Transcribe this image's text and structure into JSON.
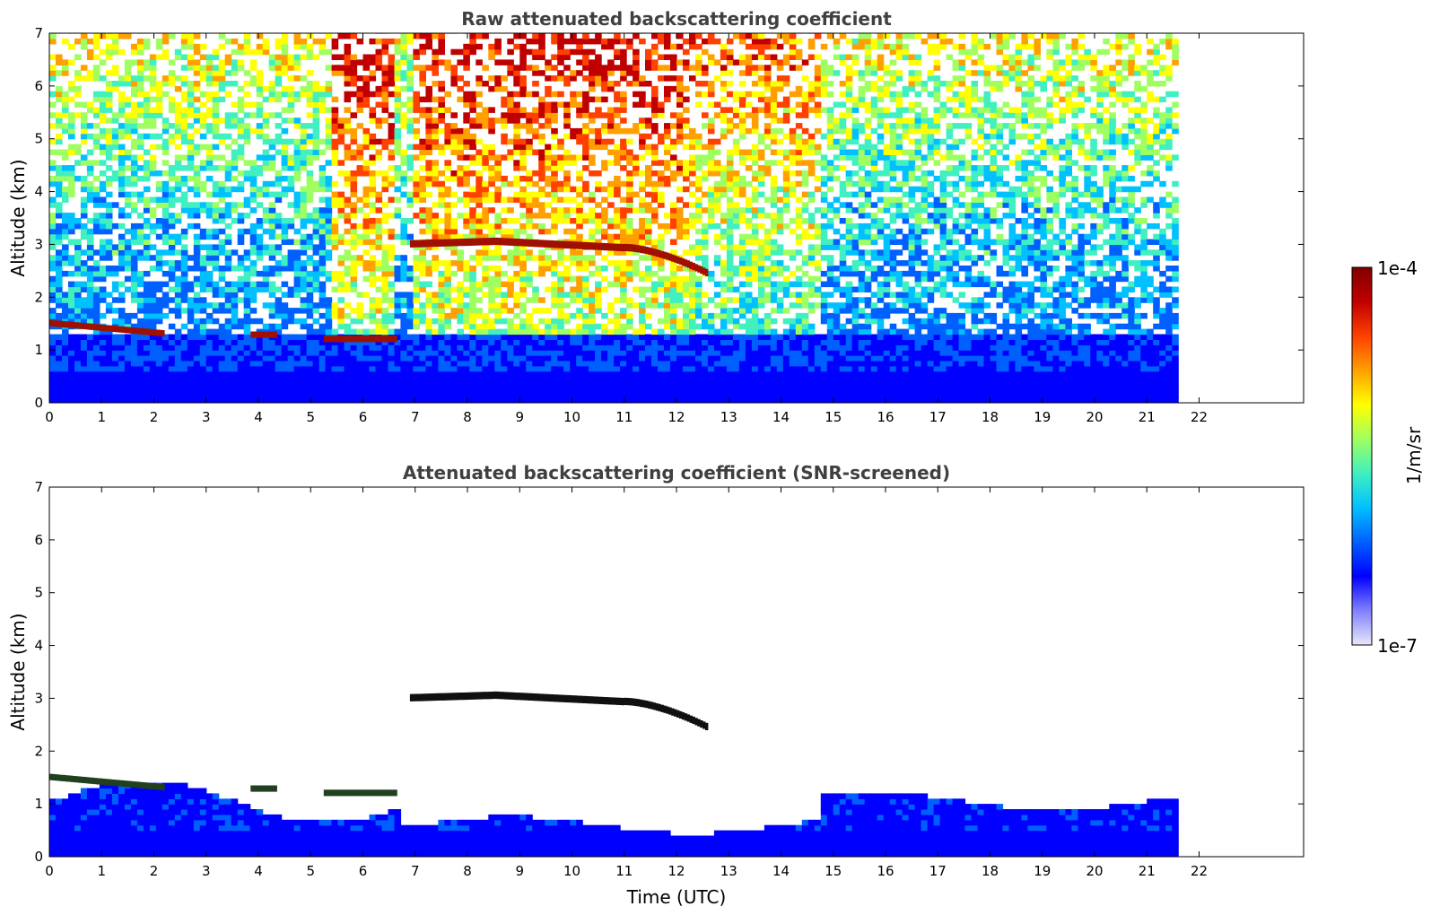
{
  "chart_data": [
    {
      "type": "heatmap",
      "title": "Raw attenuated backscattering coefficient",
      "xlabel": "",
      "ylabel": "Altitude (km)",
      "xlim": [
        0,
        24
      ],
      "ylim": [
        0,
        7
      ],
      "xticks": [
        "0",
        "1",
        "2",
        "3",
        "4",
        "5",
        "6",
        "7",
        "8",
        "9",
        "10",
        "11",
        "12",
        "13",
        "14",
        "15",
        "16",
        "17",
        "18",
        "19",
        "20",
        "21",
        "22"
      ],
      "yticks": [
        "0",
        "1",
        "2",
        "3",
        "4",
        "5",
        "6",
        "7"
      ],
      "data_end_time": 21.6,
      "features": [
        {
          "name": "elevated layer",
          "time": [
            6.9,
            12.6
          ],
          "altitude": [
            2.45,
            3.1
          ]
        },
        {
          "name": "low cloud",
          "time": [
            0,
            2.2
          ],
          "altitude": [
            1.3,
            1.55
          ]
        },
        {
          "name": "low cloud",
          "time": [
            3.8,
            4.3
          ],
          "altitude": [
            1.25,
            1.35
          ]
        },
        {
          "name": "low cloud",
          "time": [
            5.2,
            6.6
          ],
          "altitude": [
            1.15,
            1.3
          ]
        },
        {
          "name": "boundary layer",
          "time": [
            0,
            21.6
          ],
          "altitude": [
            0,
            1.3
          ]
        }
      ]
    },
    {
      "type": "heatmap",
      "title": "Attenuated backscattering coefficient (SNR-screened)",
      "xlabel": "Time (UTC)",
      "ylabel": "Altitude (km)",
      "xlim": [
        0,
        24
      ],
      "ylim": [
        0,
        7
      ],
      "xticks": [
        "0",
        "1",
        "2",
        "3",
        "4",
        "5",
        "6",
        "7",
        "8",
        "9",
        "10",
        "11",
        "12",
        "13",
        "14",
        "15",
        "16",
        "17",
        "18",
        "19",
        "20",
        "21",
        "22"
      ],
      "yticks": [
        "0",
        "1",
        "2",
        "3",
        "4",
        "5",
        "6",
        "7"
      ],
      "data_end_time": 21.6,
      "features": [
        {
          "name": "elevated layer",
          "time": [
            6.9,
            12.6
          ],
          "altitude": [
            2.45,
            3.1
          ]
        },
        {
          "name": "boundary layer",
          "time": [
            0,
            21.6
          ],
          "altitude": [
            0,
            1.5
          ]
        }
      ]
    }
  ],
  "colorbar": {
    "label": "1/m/sr",
    "max_label": "1e-4",
    "min_label": "1e-7",
    "colors": [
      "#e8e8f8",
      "#8080ff",
      "#0000ff",
      "#0060ff",
      "#00c0ff",
      "#40f0c0",
      "#a0ff60",
      "#ffff00",
      "#ffa000",
      "#ff4000",
      "#c00000",
      "#800000"
    ]
  }
}
